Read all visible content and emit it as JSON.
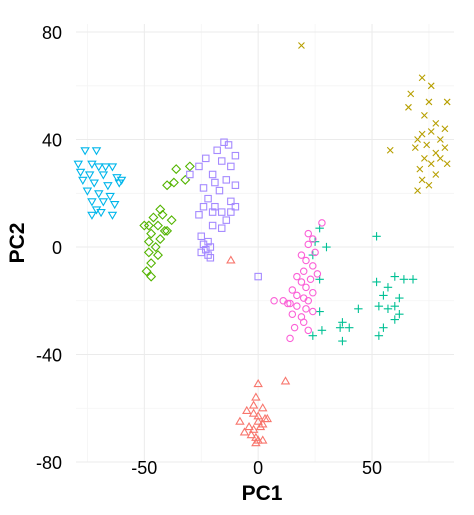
{
  "chart_data": {
    "type": "scatter",
    "xlabel": "PC1",
    "ylabel": "PC2",
    "xlim": [
      -80,
      86
    ],
    "ylim": [
      -80,
      83
    ],
    "xticks": [
      -50,
      0,
      50
    ],
    "yticks": [
      -80,
      -40,
      0,
      40,
      80
    ],
    "grid": true,
    "legend": "none",
    "series": [
      {
        "shape": "triangle",
        "color": "#F8766D",
        "points": [
          [
            0,
            -51
          ],
          [
            -1,
            -56
          ],
          [
            12,
            -50
          ],
          [
            -2,
            -59
          ],
          [
            2,
            -60
          ],
          [
            -5,
            -61
          ],
          [
            -2,
            -62
          ],
          [
            0,
            -63
          ],
          [
            3,
            -64
          ],
          [
            -8,
            -65
          ],
          [
            0,
            -65
          ],
          [
            2,
            -66
          ],
          [
            -4,
            -67
          ],
          [
            1,
            -67
          ],
          [
            -2,
            -68
          ],
          [
            -6,
            -69
          ],
          [
            -3,
            -70
          ],
          [
            -1,
            -71
          ],
          [
            0,
            -72
          ],
          [
            2,
            -72
          ],
          [
            -1,
            -73
          ],
          [
            -12,
            -5
          ],
          [
            4,
            -64
          ]
        ]
      },
      {
        "shape": "x",
        "color": "#B79F00",
        "points": [
          [
            19,
            75
          ],
          [
            72,
            63
          ],
          [
            76,
            60
          ],
          [
            67,
            57
          ],
          [
            75,
            54
          ],
          [
            66,
            52
          ],
          [
            83,
            54
          ],
          [
            73,
            49
          ],
          [
            78,
            46
          ],
          [
            82,
            44
          ],
          [
            72,
            42
          ],
          [
            76,
            43
          ],
          [
            70,
            40
          ],
          [
            80,
            40
          ],
          [
            74,
            38
          ],
          [
            69,
            37
          ],
          [
            82,
            37
          ],
          [
            78,
            35
          ],
          [
            73,
            33
          ],
          [
            80,
            33
          ],
          [
            76,
            31
          ],
          [
            83,
            31
          ],
          [
            71,
            29
          ],
          [
            78,
            27
          ],
          [
            72,
            25
          ],
          [
            75,
            23
          ],
          [
            70,
            21
          ],
          [
            58,
            36
          ]
        ]
      },
      {
        "shape": "diamond",
        "color": "#53B400",
        "points": [
          [
            -30,
            30
          ],
          [
            -36,
            29
          ],
          [
            -32,
            25
          ],
          [
            -37,
            24
          ],
          [
            -40,
            23
          ],
          [
            -43,
            14
          ],
          [
            -38,
            10
          ],
          [
            -46,
            11
          ],
          [
            -44,
            8
          ],
          [
            -48,
            8
          ],
          [
            -50,
            8
          ],
          [
            -41,
            6
          ],
          [
            -47,
            5
          ],
          [
            -43,
            3
          ],
          [
            -48,
            2
          ],
          [
            -45,
            0
          ],
          [
            -48,
            -2
          ],
          [
            -44,
            -3
          ],
          [
            -47,
            -6
          ],
          [
            -49,
            -9
          ],
          [
            -47,
            -11
          ],
          [
            -40,
            6
          ],
          [
            -42,
            12
          ]
        ]
      },
      {
        "shape": "plus",
        "color": "#00C094",
        "points": [
          [
            52,
            4
          ],
          [
            27,
            7
          ],
          [
            25,
            2
          ],
          [
            30,
            0
          ],
          [
            24,
            -3
          ],
          [
            27,
            -12
          ],
          [
            52,
            -13
          ],
          [
            60,
            -11
          ],
          [
            64,
            -12
          ],
          [
            68,
            -12
          ],
          [
            57,
            -15
          ],
          [
            55,
            -18
          ],
          [
            62,
            -19
          ],
          [
            53,
            -22
          ],
          [
            60,
            -22
          ],
          [
            57,
            -23
          ],
          [
            44,
            -23
          ],
          [
            27,
            -24
          ],
          [
            62,
            -25
          ],
          [
            60,
            -27
          ],
          [
            37,
            -28
          ],
          [
            36,
            -30
          ],
          [
            40,
            -30
          ],
          [
            55,
            -30
          ],
          [
            28,
            -31
          ],
          [
            24,
            -33
          ],
          [
            37,
            -35
          ],
          [
            53,
            -33
          ]
        ]
      },
      {
        "shape": "triangle-down",
        "color": "#00B6EB",
        "points": [
          [
            -76,
            36
          ],
          [
            -71,
            36
          ],
          [
            -79,
            31
          ],
          [
            -73,
            31
          ],
          [
            -70,
            30
          ],
          [
            -67,
            30
          ],
          [
            -64,
            30
          ],
          [
            -74,
            27
          ],
          [
            -68,
            27
          ],
          [
            -62,
            26
          ],
          [
            -77,
            25
          ],
          [
            -72,
            24
          ],
          [
            -66,
            23
          ],
          [
            -61,
            24
          ],
          [
            -60,
            25
          ],
          [
            -75,
            21
          ],
          [
            -70,
            20
          ],
          [
            -65,
            19
          ],
          [
            -68,
            17
          ],
          [
            -73,
            17
          ],
          [
            -63,
            16
          ],
          [
            -71,
            14
          ],
          [
            -69,
            13
          ],
          [
            -64,
            12
          ],
          [
            -73,
            12
          ],
          [
            -78,
            28
          ]
        ]
      },
      {
        "shape": "square",
        "color": "#A58AFF",
        "points": [
          [
            -15,
            39
          ],
          [
            -13,
            38
          ],
          [
            -18,
            36
          ],
          [
            -10,
            34
          ],
          [
            -23,
            33
          ],
          [
            -16,
            32
          ],
          [
            -26,
            30
          ],
          [
            -12,
            30
          ],
          [
            -20,
            27
          ],
          [
            -30,
            27
          ],
          [
            -14,
            25
          ],
          [
            -19,
            24
          ],
          [
            -10,
            23
          ],
          [
            -24,
            22
          ],
          [
            -17,
            21
          ],
          [
            -22,
            18
          ],
          [
            -12,
            17
          ],
          [
            -19,
            15
          ],
          [
            -10,
            15
          ],
          [
            -24,
            15
          ],
          [
            -16,
            13
          ],
          [
            -12,
            13
          ],
          [
            -20,
            13
          ],
          [
            -26,
            12
          ],
          [
            -14,
            10
          ],
          [
            -20,
            8
          ],
          [
            -16,
            7
          ],
          [
            -25,
            4
          ],
          [
            -22,
            2
          ],
          [
            -24,
            1
          ],
          [
            -21,
            0
          ],
          [
            -23,
            -1
          ],
          [
            -25,
            -2
          ],
          [
            -22,
            -3
          ],
          [
            -21,
            -4
          ],
          [
            0,
            -11
          ]
        ]
      },
      {
        "shape": "circle",
        "color": "#FB61D7",
        "points": [
          [
            28,
            9
          ],
          [
            22,
            5
          ],
          [
            24,
            3
          ],
          [
            22,
            1
          ],
          [
            25,
            -2
          ],
          [
            19,
            -3
          ],
          [
            21,
            -5
          ],
          [
            24,
            -7
          ],
          [
            20,
            -9
          ],
          [
            26,
            -10
          ],
          [
            17,
            -11
          ],
          [
            23,
            -12
          ],
          [
            19,
            -13
          ],
          [
            21,
            -15
          ],
          [
            15,
            -16
          ],
          [
            24,
            -17
          ],
          [
            17,
            -18
          ],
          [
            20,
            -19
          ],
          [
            22,
            -20
          ],
          [
            14,
            -21
          ],
          [
            13,
            -21
          ],
          [
            17,
            -22
          ],
          [
            21,
            -23
          ],
          [
            24,
            -24
          ],
          [
            7,
            -20
          ],
          [
            11,
            -20
          ],
          [
            15,
            -25
          ],
          [
            19,
            -26
          ],
          [
            20,
            -28
          ],
          [
            22,
            -31
          ],
          [
            16,
            -30
          ],
          [
            14,
            -34
          ]
        ]
      }
    ]
  }
}
